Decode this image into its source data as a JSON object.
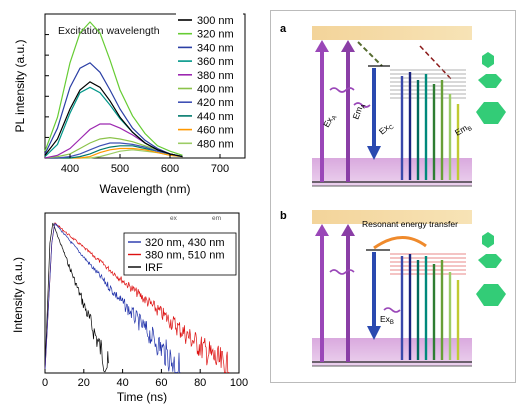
{
  "chart_data": [
    {
      "type": "line",
      "title": "Excitation wavelength",
      "xlabel": "Wavelength (nm)",
      "ylabel": "PL intensity (a.u.)",
      "xlim": [
        350,
        750
      ],
      "xticks": [
        400,
        500,
        600,
        700
      ],
      "yticks_labeled": false,
      "grid": false,
      "legend_position": "right",
      "x": [
        350,
        375,
        400,
        420,
        440,
        460,
        480,
        500,
        525,
        550,
        575,
        600,
        625
      ],
      "series": [
        {
          "name": "300 nm",
          "color": "#000000",
          "values": [
            0.02,
            0.14,
            0.36,
            0.5,
            0.56,
            0.52,
            0.42,
            0.3,
            0.19,
            0.11,
            0.06,
            0.03,
            0.01
          ]
        },
        {
          "name": "320 nm",
          "color": "#66cc33",
          "values": [
            0.05,
            0.3,
            0.7,
            0.92,
            1.0,
            0.92,
            0.72,
            0.5,
            0.31,
            0.18,
            0.09,
            0.05,
            0.02
          ]
        },
        {
          "name": "340 nm",
          "color": "#2b3fa5",
          "values": [
            0.03,
            0.22,
            0.52,
            0.66,
            0.7,
            0.63,
            0.5,
            0.36,
            0.22,
            0.13,
            0.07,
            0.03,
            0.01
          ]
        },
        {
          "name": "360 nm",
          "color": "#009688",
          "values": [
            0.01,
            0.1,
            0.33,
            0.48,
            0.52,
            0.48,
            0.39,
            0.29,
            0.19,
            0.11,
            0.06,
            0.03,
            0.01
          ]
        },
        {
          "name": "380 nm",
          "color": "#9c27b0",
          "values": [
            0.0,
            0.02,
            0.07,
            0.14,
            0.21,
            0.25,
            0.25,
            0.22,
            0.17,
            0.11,
            0.06,
            0.03,
            0.01
          ]
        },
        {
          "name": "400 nm",
          "color": "#8bc34a",
          "values": [
            0.0,
            0.01,
            0.03,
            0.07,
            0.11,
            0.14,
            0.15,
            0.14,
            0.12,
            0.09,
            0.06,
            0.03,
            0.01
          ]
        },
        {
          "name": "420 nm",
          "color": "#3f51b5",
          "values": [
            0.0,
            0.0,
            0.01,
            0.03,
            0.06,
            0.09,
            0.11,
            0.11,
            0.1,
            0.08,
            0.05,
            0.03,
            0.01
          ]
        },
        {
          "name": "440 nm",
          "color": "#00796b",
          "values": [
            0.0,
            0.0,
            0.0,
            0.01,
            0.03,
            0.06,
            0.08,
            0.09,
            0.09,
            0.07,
            0.05,
            0.03,
            0.01
          ]
        },
        {
          "name": "460 nm",
          "color": "#ff9800",
          "values": [
            0.0,
            0.0,
            0.0,
            0.0,
            0.01,
            0.04,
            0.06,
            0.07,
            0.07,
            0.06,
            0.04,
            0.02,
            0.01
          ]
        },
        {
          "name": "480 nm",
          "color": "#9ccc65",
          "values": [
            0.0,
            0.0,
            0.0,
            0.0,
            0.0,
            0.01,
            0.03,
            0.05,
            0.06,
            0.05,
            0.04,
            0.02,
            0.01
          ]
        }
      ]
    },
    {
      "type": "line",
      "xlabel": "Time (ns)",
      "ylabel": "Intensity (a.u.)",
      "xlim": [
        0,
        100
      ],
      "xticks": [
        0,
        20,
        40,
        60,
        80,
        100
      ],
      "yticks_labeled": false,
      "yscale": "log",
      "grid": false,
      "legend_position": "top-right",
      "legend_header": [
        "ex",
        "em"
      ],
      "series": [
        {
          "name": "320 nm, 430 nm",
          "color": "#2233aa",
          "peak_time": 5,
          "decay_ns": 13,
          "end_time": 70
        },
        {
          "name": "380 nm, 510 nm",
          "color": "#dd1111",
          "peak_time": 5,
          "decay_ns": 17,
          "end_time": 95
        },
        {
          "name": "IRF",
          "color": "#000000",
          "peak_time": 4,
          "decay_ns": 5,
          "end_time": 33
        }
      ]
    }
  ],
  "diagram": {
    "panel_a": {
      "label": "a",
      "labels": {
        "ex_a": "ExA",
        "em_a": "EmA",
        "ex_c": "ExC",
        "em_b": "EmB"
      }
    },
    "panel_b": {
      "label": "b",
      "caption": "Resonant energy transfer",
      "labels": {
        "ex_b": "ExB"
      }
    }
  }
}
